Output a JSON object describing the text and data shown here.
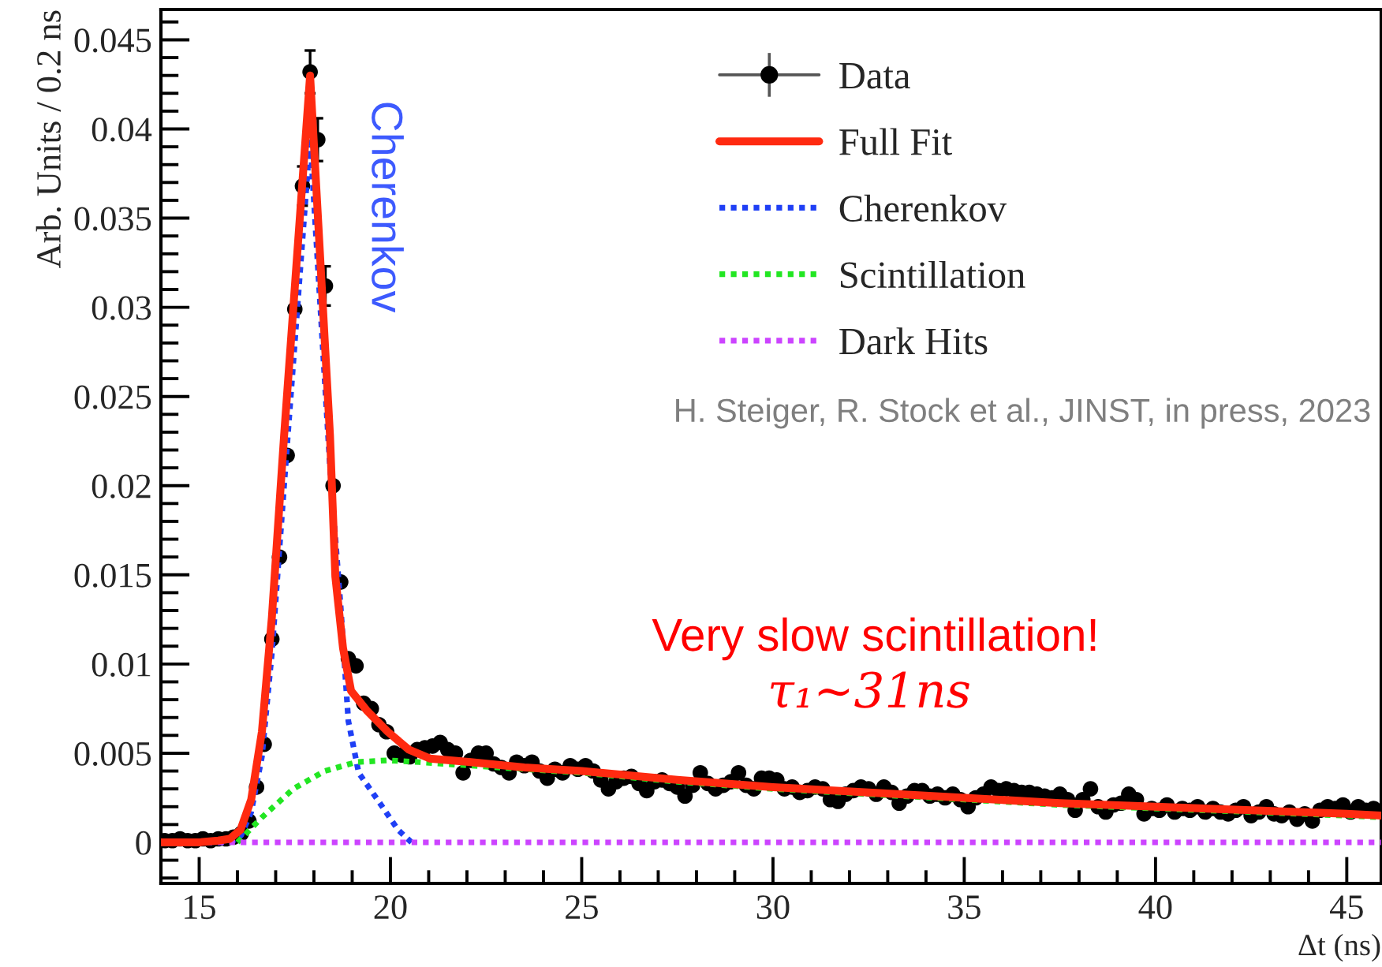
{
  "chart_data": {
    "type": "line",
    "ylabel": "Arb. Units / 0.2 ns",
    "xlabel": "Δt (ns)",
    "xlim": [
      14,
      45.9
    ],
    "xticks": [
      {
        "value": 14,
        "label": null
      },
      15,
      {
        "value": 16,
        "label": null
      },
      {
        "value": 17,
        "label": null
      },
      {
        "value": 18,
        "label": null
      },
      {
        "value": 19,
        "label": null
      },
      20,
      {
        "value": 21,
        "label": null
      },
      {
        "value": 22,
        "label": null
      },
      {
        "value": 23,
        "label": null
      },
      {
        "value": 24,
        "label": null
      },
      25,
      {
        "value": 26,
        "label": null
      },
      {
        "value": 27,
        "label": null
      },
      {
        "value": 28,
        "label": null
      },
      {
        "value": 29,
        "label": null
      },
      30,
      {
        "value": 31,
        "label": null
      },
      {
        "value": 32,
        "label": null
      },
      {
        "value": 33,
        "label": null
      },
      {
        "value": 34,
        "label": null
      },
      35,
      {
        "value": 36,
        "label": null
      },
      {
        "value": 37,
        "label": null
      },
      {
        "value": 38,
        "label": null
      },
      {
        "value": 39,
        "label": null
      },
      40,
      {
        "value": 41,
        "label": null
      },
      {
        "value": 42,
        "label": null
      },
      {
        "value": 43,
        "label": null
      },
      {
        "value": 44,
        "label": null
      },
      45
    ],
    "ylim": [
      -0.0023,
      0.0467
    ],
    "yticks": [
      {
        "value": -0.002,
        "label": null
      },
      {
        "value": -0.001,
        "label": null
      },
      0,
      {
        "value": 0.001,
        "label": null
      },
      {
        "value": 0.002,
        "label": null
      },
      {
        "value": 0.003,
        "label": null
      },
      {
        "value": 0.004,
        "label": null
      },
      0.005,
      {
        "value": 0.006,
        "label": null
      },
      {
        "value": 0.007,
        "label": null
      },
      {
        "value": 0.008,
        "label": null
      },
      {
        "value": 0.009,
        "label": null
      },
      0.01,
      {
        "value": 0.011,
        "label": null
      },
      {
        "value": 0.012,
        "label": null
      },
      {
        "value": 0.013,
        "label": null
      },
      {
        "value": 0.014,
        "label": null
      },
      0.015,
      {
        "value": 0.016,
        "label": null
      },
      {
        "value": 0.017,
        "label": null
      },
      {
        "value": 0.018,
        "label": null
      },
      {
        "value": 0.019,
        "label": null
      },
      0.02,
      {
        "value": 0.021,
        "label": null
      },
      {
        "value": 0.022,
        "label": null
      },
      {
        "value": 0.023,
        "label": null
      },
      {
        "value": 0.024,
        "label": null
      },
      0.025,
      {
        "value": 0.026,
        "label": null
      },
      {
        "value": 0.027,
        "label": null
      },
      {
        "value": 0.028,
        "label": null
      },
      {
        "value": 0.029,
        "label": null
      },
      0.03,
      {
        "value": 0.031,
        "label": null
      },
      {
        "value": 0.032,
        "label": null
      },
      {
        "value": 0.033,
        "label": null
      },
      {
        "value": 0.034,
        "label": null
      },
      0.035,
      {
        "value": 0.036,
        "label": null
      },
      {
        "value": 0.037,
        "label": null
      },
      {
        "value": 0.038,
        "label": null
      },
      {
        "value": 0.039,
        "label": null
      },
      0.04,
      {
        "value": 0.041,
        "label": null
      },
      {
        "value": 0.042,
        "label": null
      },
      {
        "value": 0.043,
        "label": null
      },
      {
        "value": 0.044,
        "label": null
      },
      0.045,
      {
        "value": 0.046,
        "label": null
      }
    ],
    "legend": "top right",
    "annotations": [
      "Cherenkov",
      "H. Steiger, R. Stock et al., JINST, in press, 2023",
      "Very slow scintillation!",
      "τ₁~31ns"
    ],
    "series": [
      {
        "name": "Data",
        "type": "scatter",
        "color": "#000000",
        "marker": "circle",
        "x": [
          14.1,
          14.3,
          14.5,
          14.7,
          14.9,
          15.1,
          15.3,
          15.5,
          15.7,
          15.9,
          16.1,
          16.3,
          16.5,
          16.7,
          16.9,
          17.1,
          17.3,
          17.5,
          17.7,
          17.9,
          18.1,
          18.3,
          18.5,
          18.7,
          18.9,
          19.1,
          19.3,
          19.5,
          19.7,
          19.9,
          20.1,
          20.3,
          20.5,
          20.7,
          20.9,
          21.1,
          21.3,
          21.5,
          21.7,
          21.9,
          22.1,
          22.3,
          22.5,
          22.7,
          22.9,
          23.1,
          23.3,
          23.5,
          23.7,
          23.9,
          24.1,
          24.3,
          24.5,
          24.7,
          24.9,
          25.1,
          25.3,
          25.5,
          25.7,
          25.9,
          26.1,
          26.3,
          26.5,
          26.7,
          26.9,
          27.1,
          27.3,
          27.5,
          27.7,
          27.9,
          28.1,
          28.3,
          28.5,
          28.7,
          28.9,
          29.1,
          29.3,
          29.5,
          29.7,
          29.9,
          30.1,
          30.3,
          30.5,
          30.7,
          30.9,
          31.1,
          31.3,
          31.5,
          31.7,
          31.9,
          32.1,
          32.3,
          32.5,
          32.7,
          32.9,
          33.1,
          33.3,
          33.5,
          33.7,
          33.9,
          34.1,
          34.3,
          34.5,
          34.7,
          34.9,
          35.1,
          35.3,
          35.5,
          35.7,
          35.9,
          36.1,
          36.3,
          36.5,
          36.7,
          36.9,
          37.1,
          37.3,
          37.5,
          37.7,
          37.9,
          38.1,
          38.3,
          38.5,
          38.7,
          38.9,
          39.1,
          39.3,
          39.5,
          39.7,
          39.9,
          40.1,
          40.3,
          40.5,
          40.7,
          40.9,
          41.1,
          41.3,
          41.5,
          41.7,
          41.9,
          42.1,
          42.3,
          42.5,
          42.7,
          42.9,
          43.1,
          43.3,
          43.5,
          43.7,
          43.9,
          44.1,
          44.3,
          44.5,
          44.7,
          44.9,
          45.1,
          45.3,
          45.5,
          45.7
        ],
        "values": [
          0.0001,
          0.0001,
          0.0002,
          0.0001,
          0.0001,
          0.0002,
          0.0001,
          0.0002,
          0.0002,
          0.0003,
          0.0005,
          0.0012,
          0.0031,
          0.0055,
          0.0114,
          0.016,
          0.0217,
          0.0299,
          0.0368,
          0.0432,
          0.0394,
          0.0312,
          0.02,
          0.0146,
          0.0103,
          0.0099,
          0.0078,
          0.0075,
          0.0066,
          0.0062,
          0.005,
          0.0049,
          0.0048,
          0.0052,
          0.0053,
          0.0054,
          0.0056,
          0.0052,
          0.005,
          0.0039,
          0.0046,
          0.005,
          0.005,
          0.0044,
          0.0042,
          0.0039,
          0.0045,
          0.0043,
          0.0045,
          0.004,
          0.0036,
          0.0041,
          0.0039,
          0.0043,
          0.0041,
          0.0043,
          0.004,
          0.0035,
          0.003,
          0.0034,
          0.0036,
          0.0037,
          0.0033,
          0.0029,
          0.0034,
          0.0035,
          0.0033,
          0.0031,
          0.0026,
          0.0032,
          0.0039,
          0.0033,
          0.003,
          0.0032,
          0.0034,
          0.0039,
          0.0032,
          0.003,
          0.0036,
          0.0036,
          0.0035,
          0.003,
          0.0031,
          0.0028,
          0.0029,
          0.0031,
          0.003,
          0.0024,
          0.0023,
          0.0027,
          0.0029,
          0.0031,
          0.003,
          0.0027,
          0.0031,
          0.0028,
          0.0022,
          0.0026,
          0.0029,
          0.0029,
          0.0026,
          0.0027,
          0.0025,
          0.0027,
          0.0024,
          0.002,
          0.0025,
          0.0027,
          0.0031,
          0.0029,
          0.003,
          0.0029,
          0.0028,
          0.0028,
          0.0027,
          0.0026,
          0.0025,
          0.0027,
          0.0024,
          0.0018,
          0.0024,
          0.003,
          0.002,
          0.0017,
          0.0021,
          0.0022,
          0.0027,
          0.0024,
          0.0016,
          0.0019,
          0.0018,
          0.0021,
          0.0017,
          0.0019,
          0.0018,
          0.002,
          0.0017,
          0.0019,
          0.0017,
          0.0016,
          0.0018,
          0.002,
          0.0015,
          0.0017,
          0.002,
          0.0016,
          0.0015,
          0.0017,
          0.0013,
          0.0016,
          0.0012,
          0.0018,
          0.002,
          0.0019,
          0.0021,
          0.0017,
          0.002,
          0.0018,
          0.0019
        ],
        "errors": [
          null,
          null,
          null,
          null,
          null,
          null,
          null,
          null,
          null,
          null,
          null,
          null,
          null,
          null,
          null,
          null,
          null,
          null,
          0.0011,
          0.0012,
          0.0012,
          0.0011,
          null,
          null,
          null,
          null,
          null,
          null,
          null,
          null,
          null,
          null,
          null,
          null,
          null,
          null,
          null,
          null,
          null,
          null,
          null,
          null,
          null,
          null,
          null,
          null,
          null,
          null,
          null,
          null,
          null,
          null,
          null,
          null,
          null,
          null,
          null,
          null,
          null,
          null,
          null,
          null,
          null,
          null,
          null,
          null,
          null,
          null,
          null,
          null,
          null,
          null,
          null,
          null,
          null,
          null,
          null,
          null,
          null,
          null,
          null,
          null,
          null,
          null,
          null,
          null,
          null,
          null,
          null,
          null,
          null,
          null,
          null,
          null,
          null,
          null,
          null,
          null,
          null,
          null,
          null,
          null,
          null,
          null,
          null,
          null,
          null,
          null,
          null,
          null,
          null,
          null,
          null,
          null,
          null,
          null,
          null,
          null,
          null,
          null,
          null,
          null,
          null,
          null,
          null,
          null,
          null,
          null,
          null,
          null,
          null,
          null,
          null,
          null,
          null,
          null,
          null,
          null,
          null,
          null,
          null,
          null,
          null,
          null,
          null,
          null,
          null,
          null,
          null,
          null,
          null,
          null,
          null,
          null,
          null,
          null,
          null,
          null,
          null
        ]
      },
      {
        "name": "Full Fit",
        "color": "#ff2a10",
        "line_style": "solid",
        "x": [
          14,
          15,
          15.5,
          15.8,
          16.08,
          16.36,
          16.64,
          16.9,
          17.22,
          17.9,
          18.42,
          18.56,
          18.76,
          18.97,
          19.38,
          19.93,
          20.48,
          21.03,
          22.1,
          23.5,
          25,
          27.5,
          30,
          32.5,
          35,
          37.5,
          40,
          42.5,
          45,
          45.9
        ],
        "values": [
          0,
          0,
          0.0001,
          0.0002,
          0.0007,
          0.0024,
          0.0062,
          0.0126,
          0.0228,
          0.043,
          0.0228,
          0.0149,
          0.0109,
          0.0085,
          0.0074,
          0.0062,
          0.0052,
          0.0047,
          0.0045,
          0.0042,
          0.004,
          0.0035,
          0.0031,
          0.0028,
          0.0025,
          0.0022,
          0.002,
          0.0018,
          0.0016,
          0.0015
        ]
      },
      {
        "name": "Cherenkov",
        "color": "#1f3ff5",
        "line_style": "dotted",
        "x": [
          14,
          15.6,
          15.9,
          16.1,
          16.36,
          16.64,
          16.9,
          17.22,
          17.9,
          18.42,
          18.7,
          18.9,
          19.17,
          19.66,
          20.2,
          20.55
        ],
        "values": [
          0,
          0,
          0.0001,
          0.0004,
          0.0017,
          0.0048,
          0.0106,
          0.02,
          0.0395,
          0.021,
          0.0132,
          0.0068,
          0.0039,
          0.0024,
          0.0007,
          0
        ]
      },
      {
        "name": "Scintillation",
        "color": "#22e622",
        "line_style": "dotted",
        "x": [
          16,
          16.64,
          17.46,
          18.28,
          19.11,
          19.93,
          20.76,
          22.13,
          25,
          27.5,
          30,
          32.5,
          35,
          37.5,
          40,
          42.5,
          45,
          45.9
        ],
        "values": [
          0,
          0.0014,
          0.003,
          0.004,
          0.0045,
          0.0046,
          0.0045,
          0.0043,
          0.0039,
          0.0034,
          0.003,
          0.0027,
          0.0024,
          0.0021,
          0.0019,
          0.0017,
          0.0015,
          0.0014
        ]
      },
      {
        "name": "Dark Hits",
        "color": "#cc44ff",
        "line_style": "dotted",
        "x": [
          14,
          45.9
        ],
        "values": [
          0,
          0
        ]
      }
    ]
  }
}
